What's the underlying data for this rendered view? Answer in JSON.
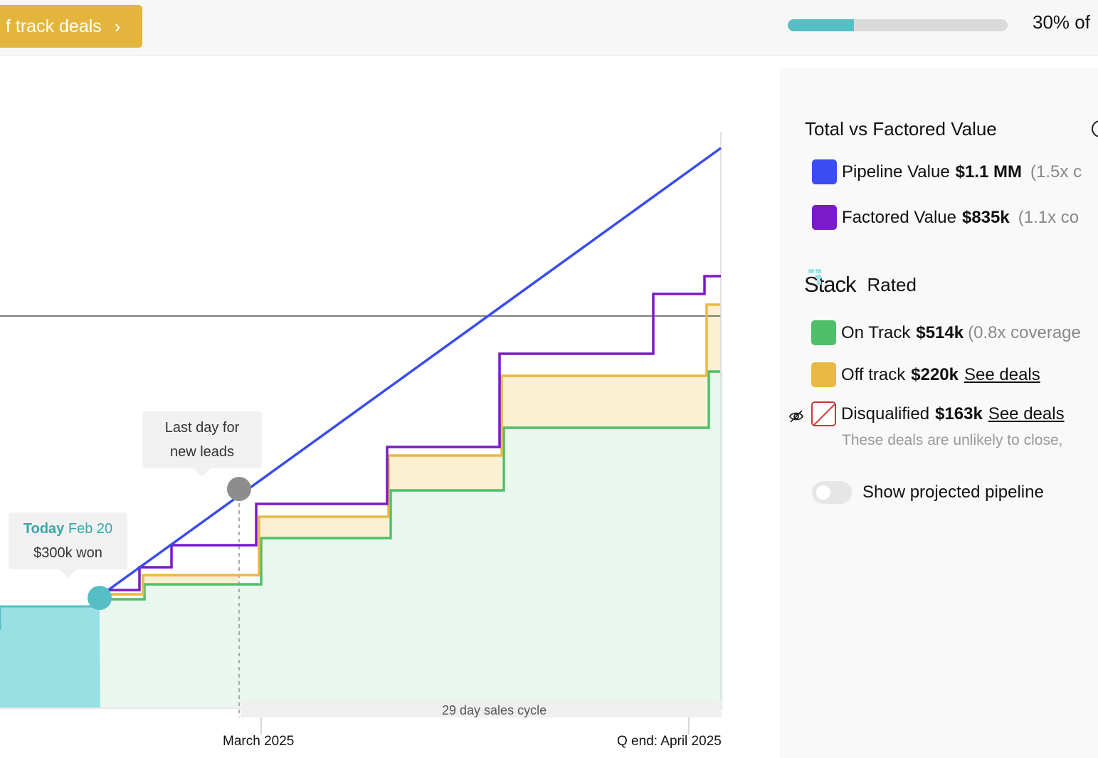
{
  "topbar": {
    "off_track_label": "f track deals",
    "chevron_icon": "chevron-right-icon",
    "progress_fraction": 0.3,
    "progress_text": "30% of"
  },
  "chart": {
    "today_label": "Today",
    "today_date": "Feb 20",
    "won_text": "$300k won",
    "last_day_line1": "Last day for",
    "last_day_line2": "new leads",
    "x_tick_march": "March 2025",
    "x_tick_qend": "Q end: April 2025",
    "sales_cycle": "29 day sales cycle"
  },
  "panel": {
    "title": "Total vs Factored Value",
    "pipeline": {
      "label": "Pipeline Value",
      "value": "$1.1 MM",
      "coverage": "(1.5x  c",
      "color": "#3a4cf2"
    },
    "factored": {
      "label": "Factored Value",
      "value": "$835k",
      "coverage": "(1.1x  co",
      "color": "#7a1ac8"
    },
    "stack_brand": "Stack",
    "rated_word": "Rated",
    "on_track": {
      "label": "On Track",
      "value": "$514k",
      "coverage": "(0.8x  coverage",
      "color": "#4fbf69"
    },
    "off_track": {
      "label": "Off track",
      "value": "$220k",
      "link": "See deals",
      "color": "#e9b943"
    },
    "disqualified": {
      "label": "Disqualified",
      "value": "$163k",
      "link": "See deals",
      "color": "#c43a3a"
    },
    "disqualified_note": "These deals are unlikely to close,",
    "toggle_label": "Show projected pipeline",
    "toggle_on": false
  }
}
